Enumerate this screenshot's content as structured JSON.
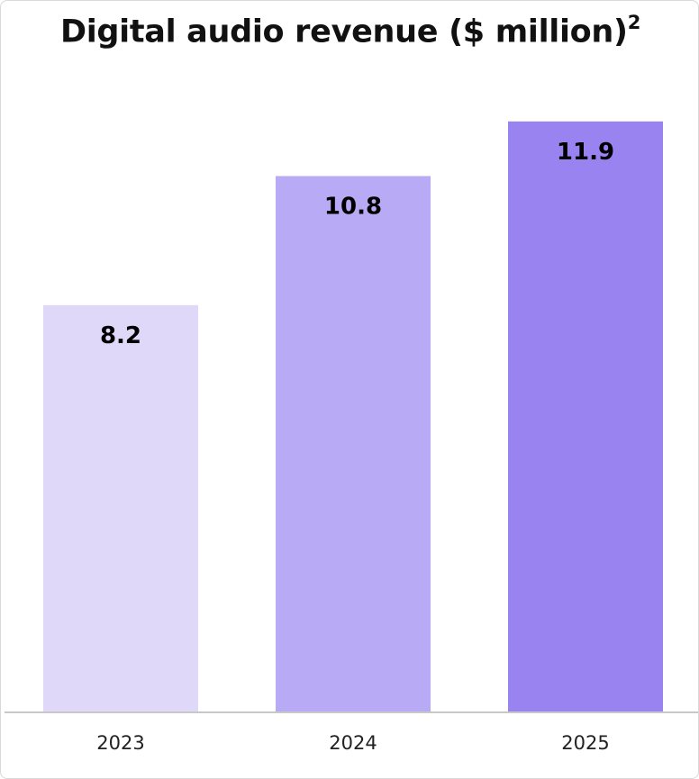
{
  "chart_data": {
    "type": "bar",
    "title": "Digital audio revenue ($ million)",
    "title_superscript": "2",
    "categories": [
      "2023",
      "2024",
      "2025"
    ],
    "values": [
      8.2,
      10.8,
      11.9
    ],
    "value_labels": [
      "8.2",
      "10.8",
      "11.9"
    ],
    "bar_colors": [
      "#dfd8f9",
      "#b9aaf5",
      "#9883f0"
    ],
    "xlabel": "",
    "ylabel": "",
    "ylim": [
      0,
      12.55
    ],
    "grid": false,
    "legend": "none"
  }
}
